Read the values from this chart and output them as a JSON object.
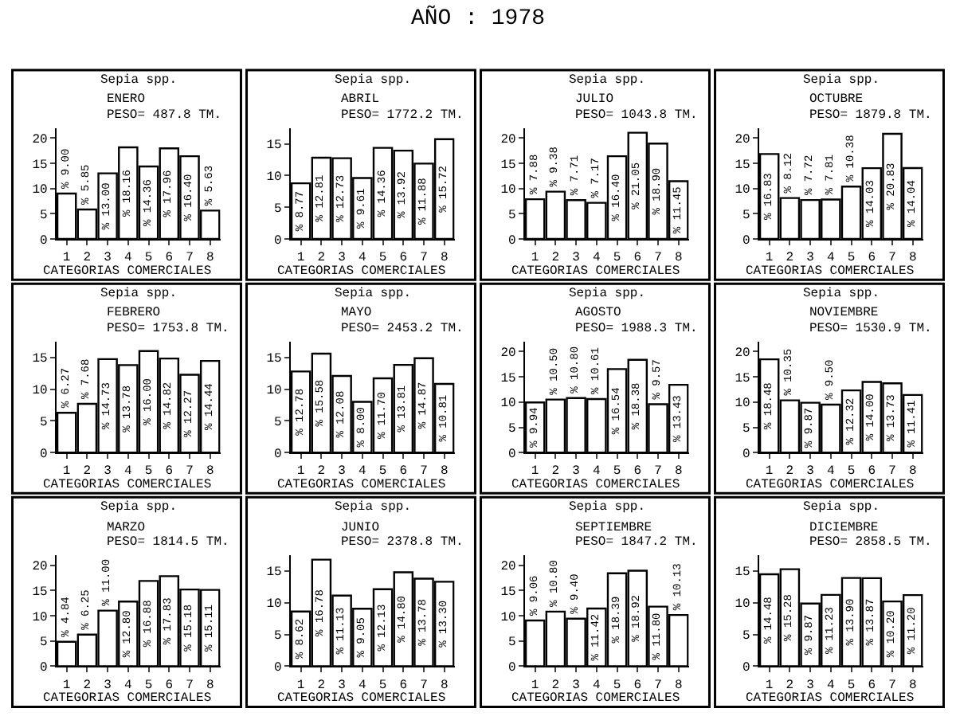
{
  "chart_data": [
    {
      "type": "bar",
      "title": "ENERO",
      "subtitle": "PESO= 487.8 TM.",
      "xlabel": "CATEGORIAS COMERCIALES",
      "annotations": [
        "AÑO : 1978",
        "Sepia spp."
      ],
      "categories": [
        "1",
        "2",
        "3",
        "4",
        "5",
        "6",
        "7",
        "8"
      ],
      "ylim": [
        0,
        22
      ],
      "yticks": [
        0,
        5,
        10,
        15,
        20
      ],
      "series": [
        {
          "color": "#ffffff",
          "values": [
            9.0,
            5.85,
            13.0,
            18.16,
            14.36,
            17.96,
            16.4,
            5.63
          ],
          "value_labels": [
            "% 9.00",
            "% 5.85",
            "% 13.00",
            "% 18.16",
            "% 14.36",
            "% 17.96",
            "% 16.40",
            "% 5.63"
          ]
        }
      ]
    },
    {
      "type": "bar",
      "title": "ABRIL",
      "subtitle": "PESO= 1772.2 TM.",
      "xlabel": "CATEGORIAS COMERCIALES",
      "annotations": [
        "Sepia spp."
      ],
      "categories": [
        "1",
        "2",
        "3",
        "4",
        "5",
        "6",
        "7",
        "8"
      ],
      "ylim": [
        0,
        17.5
      ],
      "yticks": [
        0,
        5,
        10,
        15
      ],
      "series": [
        {
          "color": "#ffffff",
          "values": [
            8.77,
            12.81,
            12.73,
            9.61,
            14.36,
            13.92,
            11.88,
            15.72
          ],
          "value_labels": [
            "% 8.77",
            "% 12.81",
            "% 12.73",
            "% 9.61",
            "% 14.36",
            "% 13.92",
            "% 11.88",
            "% 15.72"
          ]
        }
      ]
    },
    {
      "type": "bar",
      "title": "JULIO",
      "subtitle": "PESO= 1043.8 TM.",
      "xlabel": "CATEGORIAS COMERCIALES",
      "annotations": [
        "Sepia spp."
      ],
      "categories": [
        "1",
        "2",
        "3",
        "4",
        "5",
        "6",
        "7",
        "8"
      ],
      "ylim": [
        0,
        22
      ],
      "yticks": [
        0,
        5,
        10,
        15,
        20
      ],
      "series": [
        {
          "color": "#ffffff",
          "values": [
            7.88,
            9.38,
            7.71,
            7.17,
            16.4,
            21.05,
            18.9,
            11.45
          ],
          "value_labels": [
            "% 7.88",
            "% 9.38",
            "% 7.71",
            "% 7.17",
            "% 16.40",
            "% 21.05",
            "% 18.90",
            "% 11.45"
          ]
        }
      ]
    },
    {
      "type": "bar",
      "title": "OCTUBRE",
      "subtitle": "PESO= 1879.8 TM.",
      "xlabel": "CATEGORIAS COMERCIALES",
      "annotations": [
        "Sepia spp."
      ],
      "categories": [
        "1",
        "2",
        "3",
        "4",
        "5",
        "6",
        "7",
        "8"
      ],
      "ylim": [
        0,
        22
      ],
      "yticks": [
        0,
        5,
        10,
        15,
        20
      ],
      "series": [
        {
          "color": "#ffffff",
          "values": [
            16.83,
            8.12,
            7.72,
            7.81,
            10.38,
            14.03,
            20.83,
            14.04
          ],
          "value_labels": [
            "% 16.83",
            "% 8.12",
            "% 7.72",
            "% 7.81",
            "% 10.38",
            "% 14.03",
            "% 20.83",
            "% 14.04"
          ]
        }
      ]
    },
    {
      "type": "bar",
      "title": "FEBRERO",
      "subtitle": "PESO= 1753.8 TM.",
      "xlabel": "CATEGORIAS COMERCIALES",
      "annotations": [
        "Sepia spp."
      ],
      "categories": [
        "1",
        "2",
        "3",
        "4",
        "5",
        "6",
        "7",
        "8"
      ],
      "ylim": [
        0,
        17.5
      ],
      "yticks": [
        0,
        5,
        10,
        15
      ],
      "series": [
        {
          "color": "#ffffff",
          "values": [
            6.27,
            7.68,
            14.73,
            13.78,
            16.0,
            14.82,
            12.27,
            14.44
          ],
          "value_labels": [
            "% 6.27",
            "% 7.68",
            "% 14.73",
            "% 13.78",
            "% 16.00",
            "% 14.82",
            "% 12.27",
            "% 14.44"
          ]
        }
      ]
    },
    {
      "type": "bar",
      "title": "MAYO",
      "subtitle": "PESO= 2453.2 TM.",
      "xlabel": "CATEGORIAS COMERCIALES",
      "annotations": [
        "Sepia spp."
      ],
      "categories": [
        "1",
        "2",
        "3",
        "4",
        "5",
        "6",
        "7",
        "8"
      ],
      "ylim": [
        0,
        17.5
      ],
      "yticks": [
        0,
        5,
        10,
        15
      ],
      "series": [
        {
          "color": "#ffffff",
          "values": [
            12.78,
            15.58,
            12.08,
            8.0,
            11.7,
            13.81,
            14.87,
            10.81
          ],
          "value_labels": [
            "% 12.78",
            "% 15.58",
            "% 12.08",
            "% 8.00",
            "% 11.70",
            "% 13.81",
            "% 14.87",
            "% 10.81"
          ]
        }
      ]
    },
    {
      "type": "bar",
      "title": "AGOSTO",
      "subtitle": "PESO= 1988.3 TM.",
      "xlabel": "CATEGORIAS COMERCIALES",
      "annotations": [
        "Sepia spp."
      ],
      "categories": [
        "1",
        "2",
        "3",
        "4",
        "5",
        "6",
        "7",
        "8"
      ],
      "ylim": [
        0,
        22
      ],
      "yticks": [
        0,
        5,
        10,
        15,
        20
      ],
      "series": [
        {
          "color": "#ffffff",
          "values": [
            9.94,
            10.5,
            10.8,
            10.61,
            16.54,
            18.38,
            9.57,
            13.43
          ],
          "value_labels": [
            "% 9.94",
            "% 10.50",
            "% 10.80",
            "% 10.61",
            "% 16.54",
            "% 18.38",
            "% 9.57",
            "% 13.43"
          ]
        }
      ]
    },
    {
      "type": "bar",
      "title": "NOVIEMBRE",
      "subtitle": "PESO= 1530.9 TM.",
      "xlabel": "CATEGORIAS COMERCIALES",
      "annotations": [
        "Sepia spp."
      ],
      "categories": [
        "1",
        "2",
        "3",
        "4",
        "5",
        "6",
        "7",
        "8"
      ],
      "ylim": [
        0,
        22
      ],
      "yticks": [
        0,
        5,
        10,
        15,
        20
      ],
      "series": [
        {
          "color": "#ffffff",
          "values": [
            18.48,
            10.35,
            9.87,
            9.5,
            12.32,
            14.0,
            13.73,
            11.41
          ],
          "value_labels": [
            "% 18.48",
            "% 10.35",
            "% 9.87",
            "% 9.50",
            "% 12.32",
            "% 14.00",
            "% 13.73",
            "% 11.41"
          ]
        }
      ]
    },
    {
      "type": "bar",
      "title": "MARZO",
      "subtitle": "PESO= 1814.5 TM.",
      "xlabel": "CATEGORIAS COMERCIALES",
      "annotations": [
        "Sepia spp."
      ],
      "categories": [
        "1",
        "2",
        "3",
        "4",
        "5",
        "6",
        "7",
        "8"
      ],
      "ylim": [
        0,
        22
      ],
      "yticks": [
        0,
        5,
        10,
        15,
        20
      ],
      "series": [
        {
          "color": "#ffffff",
          "values": [
            4.84,
            6.25,
            11.0,
            12.8,
            16.88,
            17.83,
            15.18,
            15.11
          ],
          "value_labels": [
            "% 4.84",
            "% 6.25",
            "% 11.00",
            "% 12.80",
            "% 16.88",
            "% 17.83",
            "% 15.18",
            "% 15.11"
          ]
        }
      ]
    },
    {
      "type": "bar",
      "title": "JUNIO",
      "subtitle": "PESO= 2378.8 TM.",
      "xlabel": "CATEGORIAS COMERCIALES",
      "annotations": [
        "Sepia spp."
      ],
      "categories": [
        "1",
        "2",
        "3",
        "4",
        "5",
        "6",
        "7",
        "8"
      ],
      "ylim": [
        0,
        17.5
      ],
      "yticks": [
        0,
        5,
        10,
        15
      ],
      "series": [
        {
          "color": "#ffffff",
          "values": [
            8.62,
            16.78,
            11.13,
            9.05,
            12.13,
            14.8,
            13.78,
            13.3
          ],
          "value_labels": [
            "% 8.62",
            "% 16.78",
            "% 11.13",
            "% 9.05",
            "% 12.13",
            "% 14.80",
            "% 13.78",
            "% 13.30"
          ]
        }
      ]
    },
    {
      "type": "bar",
      "title": "SEPTIEMBRE",
      "subtitle": "PESO= 1847.2 TM.",
      "xlabel": "CATEGORIAS COMERCIALES",
      "annotations": [
        "Sepia spp."
      ],
      "categories": [
        "1",
        "2",
        "3",
        "4",
        "5",
        "6",
        "7",
        "8"
      ],
      "ylim": [
        0,
        22
      ],
      "yticks": [
        0,
        5,
        10,
        15,
        20
      ],
      "series": [
        {
          "color": "#ffffff",
          "values": [
            9.06,
            10.8,
            9.4,
            11.42,
            18.39,
            18.92,
            11.8,
            10.13
          ],
          "value_labels": [
            "% 9.06",
            "% 10.80",
            "% 9.40",
            "% 11.42",
            "% 18.39",
            "% 18.92",
            "% 11.80",
            "% 10.13"
          ]
        }
      ]
    },
    {
      "type": "bar",
      "title": "DICIEMBRE",
      "subtitle": "PESO= 2858.5 TM.",
      "xlabel": "CATEGORIAS COMERCIALES",
      "annotations": [
        "Sepia spp."
      ],
      "categories": [
        "1",
        "2",
        "3",
        "4",
        "5",
        "6",
        "7",
        "8"
      ],
      "ylim": [
        0,
        17.5
      ],
      "yticks": [
        0,
        5,
        10,
        15
      ],
      "series": [
        {
          "color": "#ffffff",
          "values": [
            14.48,
            15.28,
            9.87,
            11.23,
            13.9,
            13.87,
            10.2,
            11.2
          ],
          "value_labels": [
            "% 14.48",
            "% 15.28",
            "% 9.87",
            "% 11.23",
            "% 13.90",
            "% 13.87",
            "% 10.20",
            "% 11.20"
          ]
        }
      ]
    }
  ]
}
